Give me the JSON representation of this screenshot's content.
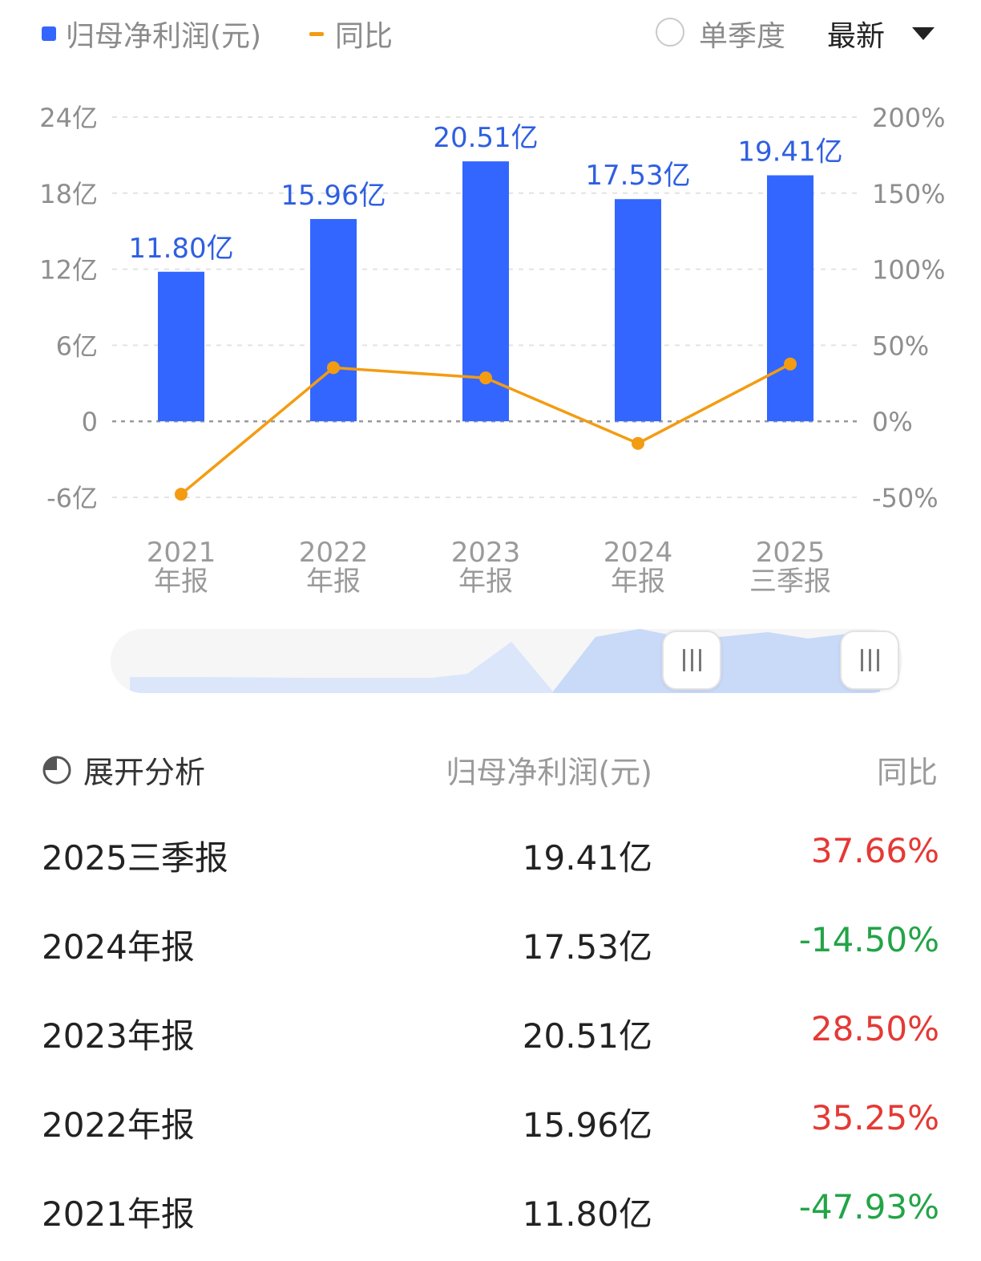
{
  "legend": {
    "bar_label": "归母净利润(元)",
    "line_label": "同比",
    "single_quarter_label": "单季度",
    "select_value": "最新"
  },
  "colors": {
    "bar": "#3366ff",
    "line": "#f39c12",
    "positive": "#e53935",
    "negative": "#22a447",
    "navigator_fill": "#dbe6fb",
    "navigator_selected": "#c9d9f8"
  },
  "chart_data": {
    "type": "bar",
    "categories": [
      "2021\n年报",
      "2022\n年报",
      "2023\n年报",
      "2024\n年报",
      "2025\n三季报"
    ],
    "series": [
      {
        "name": "归母净利润(元)",
        "type": "bar",
        "axis": "left",
        "values": [
          11.8,
          15.96,
          20.51,
          17.53,
          19.41
        ],
        "data_labels": [
          "11.80亿",
          "15.96亿",
          "20.51亿",
          "17.53亿",
          "19.41亿"
        ]
      },
      {
        "name": "同比",
        "type": "line",
        "axis": "right",
        "values": [
          -47.93,
          35.25,
          28.5,
          -14.5,
          37.66
        ]
      }
    ],
    "y_left": {
      "ticks": [
        -6,
        0,
        6,
        12,
        18,
        24
      ],
      "tick_labels": [
        "-6亿",
        "0",
        "6亿",
        "12亿",
        "18亿",
        "24亿"
      ],
      "ylim": [
        -6,
        24
      ]
    },
    "y_right": {
      "ticks": [
        -50,
        0,
        50,
        100,
        150,
        200
      ],
      "tick_labels": [
        "-50%",
        "0%",
        "50%",
        "100%",
        "150%",
        "200%"
      ],
      "ylim": [
        -50,
        200
      ]
    },
    "grid": true,
    "legend_position": "top-left"
  },
  "navigator_icons": [
    "grip-icon",
    "grip-icon"
  ],
  "table": {
    "expand_label": "展开分析",
    "col_value": "归母净利润(元)",
    "col_yoy": "同比",
    "rows": [
      {
        "period": "2025三季报",
        "value": "19.41亿",
        "yoy": "37.66%",
        "sign": "positive"
      },
      {
        "period": "2024年报",
        "value": "17.53亿",
        "yoy": "-14.50%",
        "sign": "negative"
      },
      {
        "period": "2023年报",
        "value": "20.51亿",
        "yoy": "28.50%",
        "sign": "positive"
      },
      {
        "period": "2022年报",
        "value": "15.96亿",
        "yoy": "35.25%",
        "sign": "positive"
      },
      {
        "period": "2021年报",
        "value": "11.80亿",
        "yoy": "-47.93%",
        "sign": "negative"
      }
    ]
  }
}
